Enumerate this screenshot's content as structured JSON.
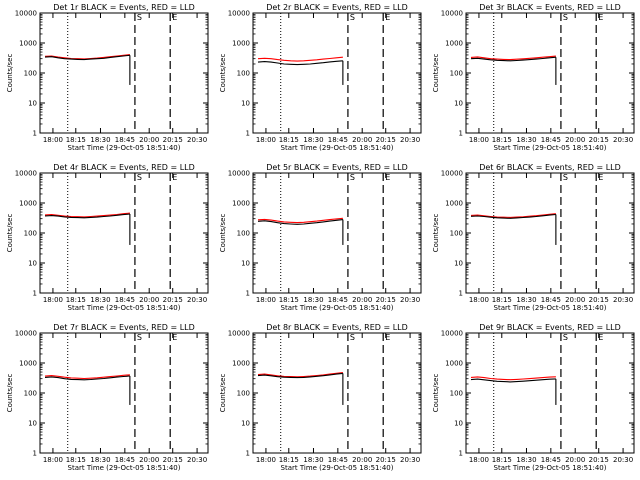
{
  "xlabel": "Start Time (29-Oct-05 18:51:40)",
  "ylabel": "Counts/sec",
  "xticks": [
    "18:00",
    "18:15",
    "18:30",
    "18:45",
    "20:00",
    "20:15",
    "20:30"
  ],
  "yticks": [
    "1",
    "10",
    "100",
    "1000",
    "10000"
  ],
  "marker_labels": [
    "S",
    "E"
  ],
  "colors": {
    "events": "#000000",
    "lld": "#ff0000",
    "axes": "#000000"
  },
  "chart_data": [
    {
      "type": "line",
      "title": "Det 1r BLACK = Events, RED = LLD",
      "x": [
        0,
        4,
        8,
        12,
        16,
        20,
        24,
        28,
        32,
        36,
        40,
        44,
        48,
        52
      ],
      "series": [
        {
          "name": "Events",
          "values": [
            340,
            350,
            320,
            300,
            290,
            285,
            280,
            290,
            300,
            310,
            330,
            350,
            370,
            390
          ]
        },
        {
          "name": "LLD",
          "values": [
            360,
            370,
            340,
            320,
            305,
            300,
            295,
            305,
            315,
            330,
            350,
            370,
            390,
            410
          ]
        }
      ],
      "ylim": [
        1,
        10000
      ],
      "yscale": "log"
    },
    {
      "type": "line",
      "title": "Det 2r BLACK = Events, RED = LLD",
      "x": [
        0,
        4,
        8,
        12,
        16,
        20,
        24,
        28,
        32,
        36,
        40,
        44,
        48,
        52
      ],
      "series": [
        {
          "name": "Events",
          "values": [
            230,
            240,
            230,
            215,
            200,
            195,
            190,
            195,
            200,
            210,
            220,
            235,
            245,
            255
          ]
        },
        {
          "name": "LLD",
          "values": [
            300,
            310,
            300,
            280,
            265,
            255,
            250,
            255,
            265,
            275,
            290,
            305,
            320,
            335
          ]
        }
      ],
      "ylim": [
        1,
        10000
      ],
      "yscale": "log"
    },
    {
      "type": "line",
      "title": "Det 3r BLACK = Events, RED = LLD",
      "x": [
        0,
        4,
        8,
        12,
        16,
        20,
        24,
        28,
        32,
        36,
        40,
        44,
        48,
        52
      ],
      "series": [
        {
          "name": "Events",
          "values": [
            300,
            310,
            290,
            275,
            265,
            260,
            255,
            262,
            270,
            280,
            290,
            305,
            320,
            335
          ]
        },
        {
          "name": "LLD",
          "values": [
            330,
            345,
            320,
            300,
            290,
            285,
            280,
            288,
            297,
            308,
            320,
            335,
            350,
            365
          ]
        }
      ],
      "ylim": [
        1,
        10000
      ],
      "yscale": "log"
    },
    {
      "type": "line",
      "title": "Det 4r BLACK = Events, RED = LLD",
      "x": [
        0,
        4,
        8,
        12,
        16,
        20,
        24,
        28,
        32,
        36,
        40,
        44,
        48,
        52
      ],
      "series": [
        {
          "name": "Events",
          "values": [
            370,
            380,
            365,
            345,
            330,
            325,
            320,
            330,
            340,
            355,
            370,
            390,
            410,
            430
          ]
        },
        {
          "name": "LLD",
          "values": [
            400,
            410,
            390,
            370,
            355,
            350,
            345,
            355,
            365,
            380,
            395,
            415,
            440,
            460
          ]
        }
      ],
      "ylim": [
        1,
        10000
      ],
      "yscale": "log"
    },
    {
      "type": "line",
      "title": "Det 5r BLACK = Events, RED = LLD",
      "x": [
        0,
        4,
        8,
        12,
        16,
        20,
        24,
        28,
        32,
        36,
        40,
        44,
        48,
        52
      ],
      "series": [
        {
          "name": "Events",
          "values": [
            245,
            255,
            240,
            220,
            205,
            200,
            195,
            200,
            210,
            220,
            235,
            250,
            265,
            280
          ]
        },
        {
          "name": "LLD",
          "values": [
            275,
            285,
            270,
            250,
            235,
            228,
            222,
            228,
            238,
            250,
            265,
            280,
            295,
            310
          ]
        }
      ],
      "ylim": [
        1,
        10000
      ],
      "yscale": "log"
    },
    {
      "type": "line",
      "title": "Det 6r BLACK = Events, RED = LLD",
      "x": [
        0,
        4,
        8,
        12,
        16,
        20,
        24,
        28,
        32,
        36,
        40,
        44,
        48,
        52
      ],
      "series": [
        {
          "name": "Events",
          "values": [
            360,
            370,
            355,
            335,
            320,
            315,
            310,
            318,
            328,
            340,
            355,
            375,
            395,
            415
          ]
        },
        {
          "name": "LLD",
          "values": [
            385,
            395,
            375,
            355,
            340,
            335,
            330,
            338,
            348,
            362,
            378,
            398,
            420,
            440
          ]
        }
      ],
      "ylim": [
        1,
        10000
      ],
      "yscale": "log"
    },
    {
      "type": "line",
      "title": "Det 7r BLACK = Events, RED = LLD",
      "x": [
        0,
        4,
        8,
        12,
        16,
        20,
        24,
        28,
        32,
        36,
        40,
        44,
        48,
        52
      ],
      "series": [
        {
          "name": "Events",
          "values": [
            330,
            345,
            325,
            300,
            285,
            280,
            275,
            282,
            292,
            305,
            320,
            338,
            355,
            370
          ]
        },
        {
          "name": "LLD",
          "values": [
            365,
            380,
            360,
            335,
            318,
            312,
            305,
            312,
            322,
            336,
            352,
            370,
            388,
            405
          ]
        }
      ],
      "ylim": [
        1,
        10000
      ],
      "yscale": "log"
    },
    {
      "type": "line",
      "title": "Det 8r BLACK = Events, RED = LLD",
      "x": [
        0,
        4,
        8,
        12,
        16,
        20,
        24,
        28,
        32,
        36,
        40,
        44,
        48,
        52
      ],
      "series": [
        {
          "name": "Events",
          "values": [
            380,
            395,
            375,
            350,
            335,
            330,
            325,
            332,
            345,
            360,
            378,
            400,
            425,
            450
          ]
        },
        {
          "name": "LLD",
          "values": [
            410,
            425,
            400,
            375,
            358,
            352,
            346,
            354,
            367,
            383,
            402,
            426,
            452,
            478
          ]
        }
      ],
      "ylim": [
        1,
        10000
      ],
      "yscale": "log"
    },
    {
      "type": "line",
      "title": "Det 9r BLACK = Events, RED = LLD",
      "x": [
        0,
        4,
        8,
        12,
        16,
        20,
        24,
        28,
        32,
        36,
        40,
        44,
        48,
        52
      ],
      "series": [
        {
          "name": "Events",
          "values": [
            280,
            290,
            275,
            260,
            245,
            240,
            235,
            240,
            248,
            258,
            268,
            278,
            288,
            295
          ]
        },
        {
          "name": "LLD",
          "values": [
            330,
            345,
            325,
            305,
            290,
            283,
            277,
            283,
            292,
            303,
            315,
            327,
            338,
            348
          ]
        }
      ],
      "ylim": [
        1,
        10000
      ],
      "yscale": "log"
    }
  ]
}
